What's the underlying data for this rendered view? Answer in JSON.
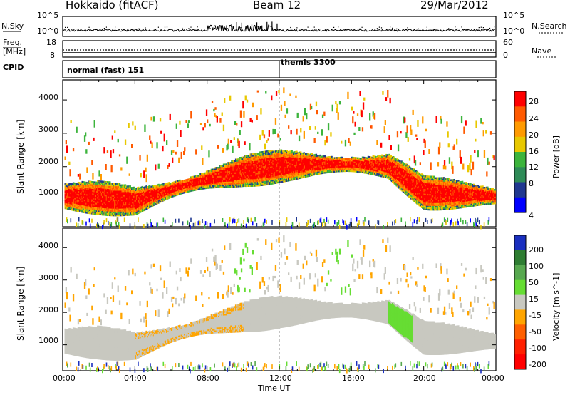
{
  "header": {
    "station": "Hokkaido (fitACF)",
    "beam": "Beam 12",
    "date": "29/Mar/2012"
  },
  "side_labels": {
    "nsky": "N.Sky",
    "nsearch": "N.Search",
    "freq_line1": "Freq.",
    "freq_line2": "[MHz]",
    "nave": "Nave",
    "cpid": "CPID"
  },
  "small_panels": {
    "noise_left_ticks": [
      "10^5",
      "10^0"
    ],
    "noise_right_ticks": [
      "10^5",
      "10^0"
    ],
    "freq_left_ticks": [
      "18",
      "8"
    ],
    "freq_right_ticks": [
      "60",
      "0"
    ]
  },
  "cpid_segments": [
    {
      "label": "normal (fast) 151",
      "start_hour": 0
    },
    {
      "label": "themis 3300",
      "start_hour": 12
    }
  ],
  "chart_data": [
    {
      "type": "heatmap",
      "title": "Power",
      "ylabel": "Slant Range [km]",
      "ylim": [
        200,
        4600
      ],
      "yticks": [
        "1000",
        "2000",
        "3000",
        "4000"
      ],
      "xlim": [
        0,
        24
      ],
      "colorbar_label": "Power [dB]",
      "colorbar_ticks": [
        "28",
        "24",
        "20",
        "16",
        "12",
        "8",
        "4"
      ],
      "colorbar_colors": [
        "#ff0000",
        "#ff5a00",
        "#ff9a00",
        "#e8c800",
        "#3cb43c",
        "#2e8b57",
        "#203890",
        "#0000ff"
      ],
      "band_center_km": [
        {
          "hour": 0,
          "value": 1100
        },
        {
          "hour": 2,
          "value": 1050
        },
        {
          "hour": 4,
          "value": 950
        },
        {
          "hour": 6,
          "value": 1300
        },
        {
          "hour": 8,
          "value": 1600
        },
        {
          "hour": 10,
          "value": 1850
        },
        {
          "hour": 12,
          "value": 2000
        },
        {
          "hour": 14,
          "value": 2050
        },
        {
          "hour": 16,
          "value": 2050
        },
        {
          "hour": 18,
          "value": 2000
        },
        {
          "hour": 19,
          "value": 1600
        },
        {
          "hour": 20,
          "value": 1200
        },
        {
          "hour": 22,
          "value": 1150
        },
        {
          "hour": 24,
          "value": 1100
        }
      ]
    },
    {
      "type": "heatmap",
      "title": "Velocity",
      "ylabel": "Slant Range [km]",
      "ylim": [
        200,
        4600
      ],
      "yticks": [
        "1000",
        "2000",
        "3000",
        "4000"
      ],
      "xlim": [
        0,
        24
      ],
      "xlabel": "Time UT",
      "xticks": [
        "00:00",
        "04:00",
        "08:00",
        "12:00",
        "16:00",
        "20:00",
        "00:00"
      ],
      "colorbar_label": "Velocity [m s^-1]",
      "colorbar_ticks": [
        "200",
        "100",
        "50",
        "15",
        "-15",
        "-50",
        "-100",
        "-200"
      ],
      "colorbar_colors": [
        "#1a2fbf",
        "#2e7d32",
        "#57a84f",
        "#66dd33",
        "#c8c8c0",
        "#ffa500",
        "#ff6000",
        "#ff2000",
        "#ff0000"
      ]
    }
  ]
}
